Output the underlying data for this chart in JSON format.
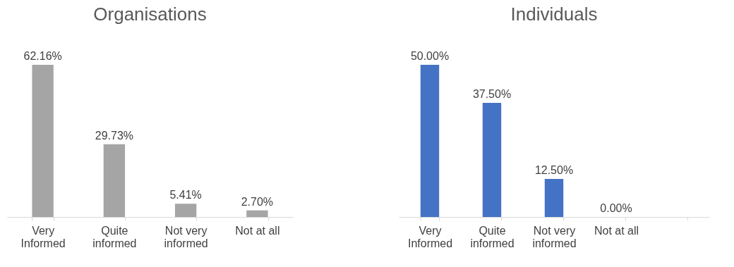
{
  "chart_data": [
    {
      "type": "bar",
      "title": "Organisations",
      "categories": [
        "Very\nInformed",
        "Quite\ninformed",
        "Not very\ninformed",
        "Not at all"
      ],
      "series": [
        {
          "color": "#a5a5a5",
          "values": [
            62.16,
            29.73,
            5.41,
            2.7
          ],
          "value_labels": [
            "62.16%",
            "29.73%",
            "5.41%",
            "2.70%"
          ]
        }
      ],
      "tick_labels": "x"
    },
    {
      "type": "bar",
      "title": "Individuals",
      "categories": [
        "Very\nInformed",
        "Quite\ninformed",
        "Not very\ninformed",
        "Not at all",
        null
      ],
      "series": [
        {
          "color": "#4472c4",
          "values": [
            50.0,
            37.5,
            12.5,
            0.0,
            null
          ],
          "value_labels": [
            "50.00%",
            "37.50%",
            "12.50%",
            "0.00%",
            null
          ]
        }
      ],
      "tick_labels": "x"
    }
  ]
}
